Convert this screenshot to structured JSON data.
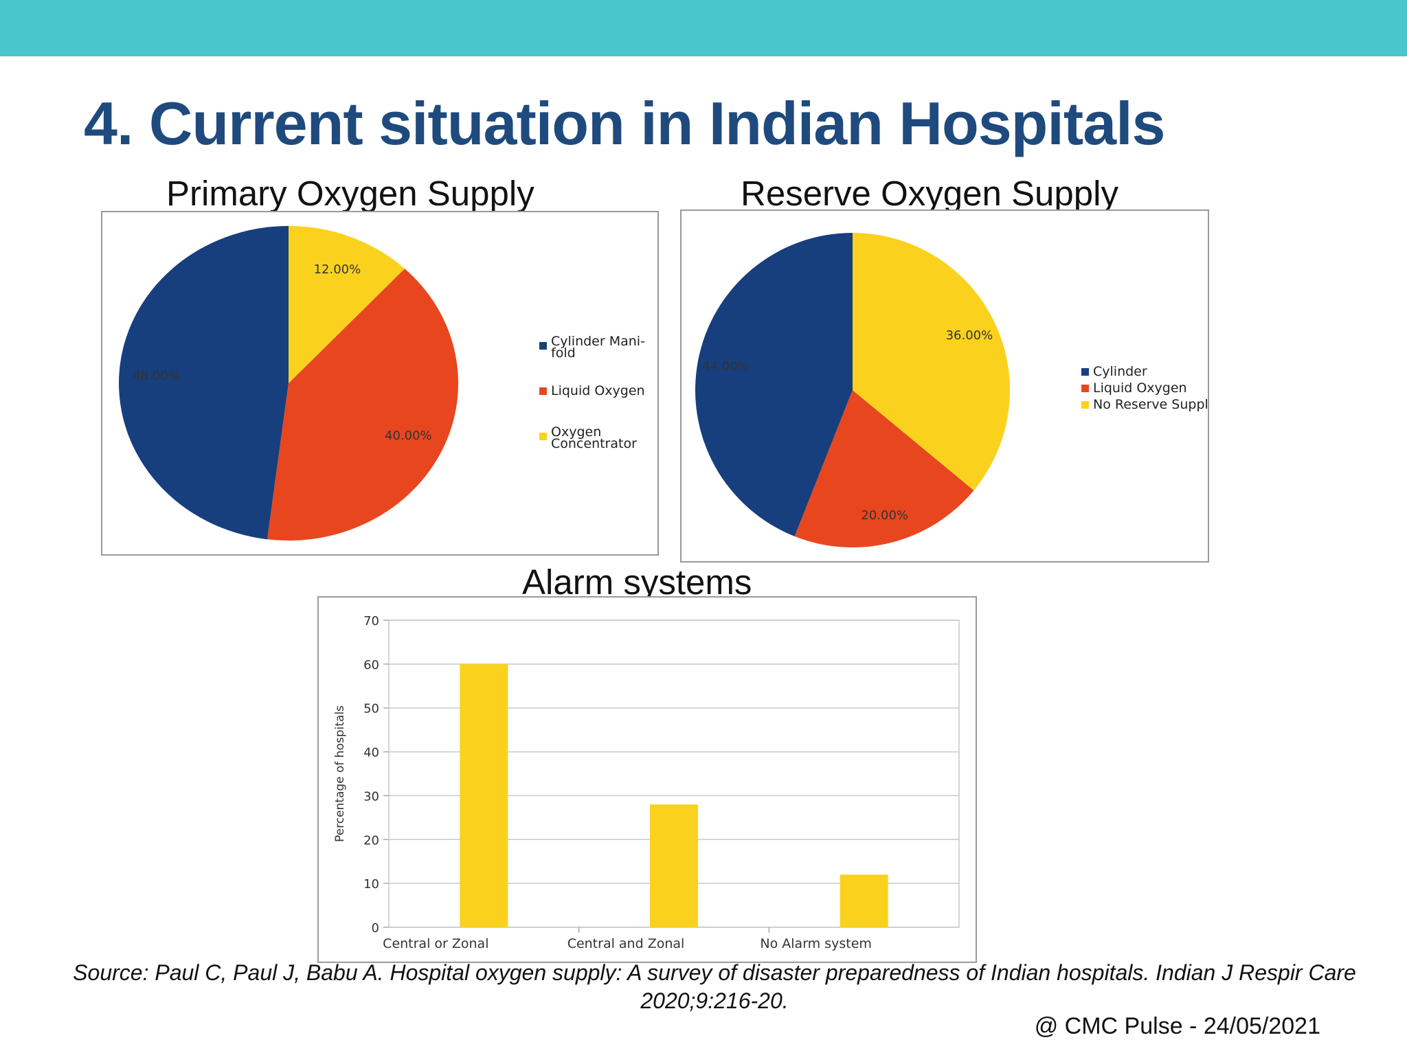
{
  "slide": {
    "title": "4. Current situation in Indian Hospitals",
    "source": "Source: Paul C, Paul J, Babu A. Hospital oxygen supply: A survey of disaster preparedness of Indian hospitals. Indian J Respir Care 2020;9:216-20.",
    "footer": "@ CMC Pulse - 24/05/2021",
    "accent_color": "#48c6cc",
    "title_color": "#1f4a7d"
  },
  "chart_data": [
    {
      "type": "pie",
      "title": "Primary Oxygen Supply",
      "legend_position": "right",
      "slices": [
        {
          "label": "Cylinder Mani-fold",
          "value": 48.0,
          "display": "48.00%",
          "color": "#173f7d"
        },
        {
          "label": "Liquid Oxygen",
          "value": 40.0,
          "display": "40.00%",
          "color": "#e8461f"
        },
        {
          "label": "Oxygen Concentrator",
          "value": 12.0,
          "display": "12.00%",
          "color": "#fad21e"
        }
      ]
    },
    {
      "type": "pie",
      "title": "Reserve Oxygen Supply",
      "legend_position": "right",
      "slices": [
        {
          "label": "Cylinder",
          "value": 44.0,
          "display": "44.00%",
          "color": "#173f7d"
        },
        {
          "label": "Liquid Oxygen",
          "value": 20.0,
          "display": "20.00%",
          "color": "#e8461f"
        },
        {
          "label": "No Reserve Supply",
          "value": 36.0,
          "display": "36.00%",
          "color": "#fad21e"
        }
      ]
    },
    {
      "type": "bar",
      "title": "Alarm systems",
      "categories": [
        "Central or Zonal",
        "Central and Zonal",
        "No Alarm system"
      ],
      "values": [
        60,
        28,
        12
      ],
      "xlabel": "",
      "ylabel": "Percentage of hospitals",
      "ylim": [
        0,
        70
      ],
      "yticks": [
        0,
        10,
        20,
        30,
        40,
        50,
        60,
        70
      ],
      "grid": true,
      "bar_color": "#fad21e"
    }
  ]
}
